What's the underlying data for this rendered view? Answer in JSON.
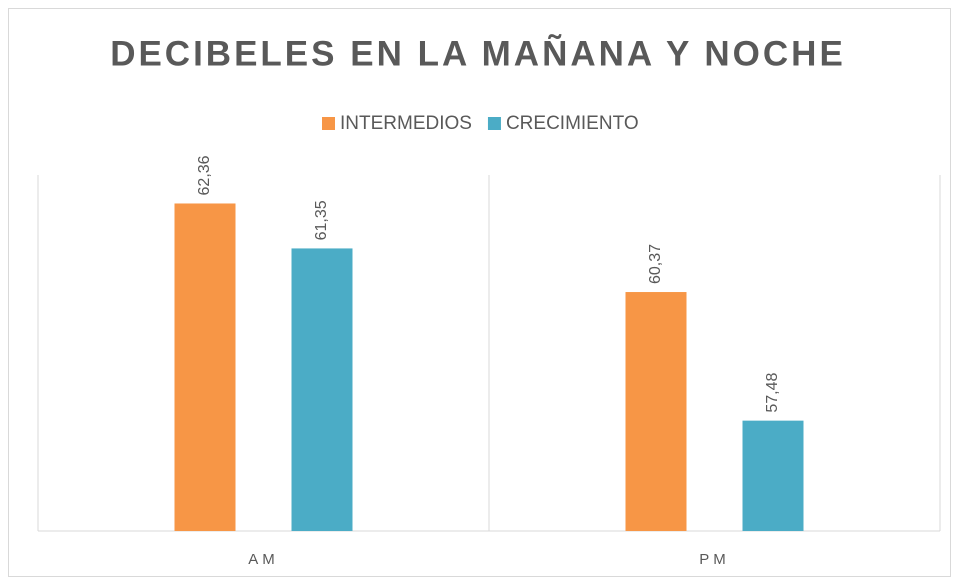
{
  "chart_data": {
    "type": "bar",
    "title": "DECIBELES EN LA MAÑANA Y NOCHE",
    "categories": [
      "AM",
      "PM"
    ],
    "series": [
      {
        "name": "INTERMEDIOS",
        "color": "#f79646",
        "values": [
          62.36,
          60.37
        ],
        "value_labels": [
          "62,36",
          "60,37"
        ]
      },
      {
        "name": "CRECIMIENTO",
        "color": "#4bacc6",
        "values": [
          61.35,
          57.48
        ],
        "value_labels": [
          "61,35",
          "57,48"
        ]
      }
    ],
    "ylim": [
      55,
      63
    ],
    "legend": "top"
  }
}
